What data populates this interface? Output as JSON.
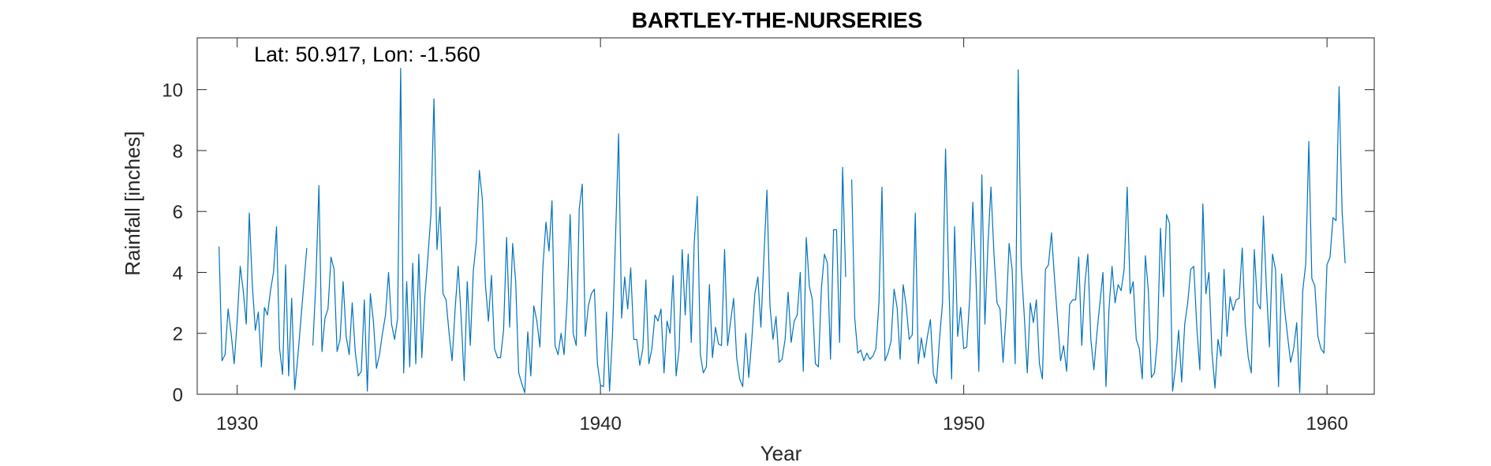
{
  "chart_data": {
    "type": "line",
    "title": "BARTLEY-THE-NURSERIES",
    "annotation": "Lat: 50.917, Lon: -1.560",
    "xlabel": "Year",
    "ylabel": "Rainfall [inches]",
    "xlim": [
      1928.9,
      1961.3
    ],
    "ylim": [
      0,
      11.7
    ],
    "xticks": [
      1930,
      1940,
      1950,
      1960
    ],
    "yticks": [
      0,
      2,
      4,
      6,
      8,
      10
    ],
    "grid": false,
    "line_color": "#0072BD",
    "series": [
      {
        "x_start": 1929.5,
        "x_step": 0.08333,
        "values": [
          4.85,
          1.1,
          1.3,
          2.8,
          2.0,
          1.0,
          2.4,
          4.2,
          3.4,
          2.3,
          5.95,
          3.6,
          2.1,
          2.7,
          0.9,
          2.85,
          2.6,
          3.4,
          4.0,
          5.5,
          1.5,
          0.65,
          4.25,
          0.6,
          3.15,
          0.15,
          1.2,
          2.4,
          3.6,
          4.8,
          null,
          1.6,
          3.7,
          6.85,
          1.4,
          2.5,
          2.8,
          4.5,
          4.1,
          1.4,
          1.8,
          3.7,
          1.9,
          1.3,
          3.0,
          1.4,
          0.6,
          0.75,
          3.1,
          0.1,
          3.3,
          2.4,
          0.85,
          1.3,
          2.0,
          2.6,
          4.0,
          2.3,
          1.8,
          2.5,
          10.7,
          0.7,
          3.7,
          0.9,
          4.3,
          1.0,
          4.6,
          1.2,
          3.2,
          4.5,
          5.9,
          9.7,
          4.75,
          6.15,
          3.3,
          3.1,
          2.0,
          1.1,
          2.8,
          4.2,
          2.5,
          0.45,
          3.7,
          1.6,
          4.05,
          5.0,
          7.35,
          6.4,
          3.6,
          2.4,
          3.9,
          1.5,
          1.2,
          1.2,
          2.1,
          5.15,
          2.2,
          4.95,
          3.7,
          0.7,
          0.35,
          0.05,
          2.05,
          0.6,
          2.9,
          2.4,
          1.55,
          4.2,
          5.65,
          4.7,
          6.35,
          1.6,
          1.3,
          2.0,
          1.3,
          3.1,
          5.9,
          2.0,
          1.6,
          6.1,
          6.9,
          1.9,
          2.9,
          3.3,
          3.45,
          1.0,
          0.3,
          0.25,
          2.7,
          0.1,
          2.0,
          5.2,
          8.55,
          2.5,
          3.85,
          2.8,
          4.15,
          1.8,
          1.8,
          0.95,
          1.5,
          3.75,
          1.0,
          1.5,
          2.6,
          2.4,
          2.8,
          0.7,
          2.4,
          2.0,
          3.9,
          0.6,
          1.5,
          4.75,
          2.6,
          4.6,
          1.7,
          5.0,
          6.5,
          1.3,
          0.7,
          0.9,
          3.6,
          1.2,
          2.2,
          1.65,
          1.6,
          4.75,
          1.6,
          2.4,
          3.15,
          1.2,
          0.5,
          0.25,
          2.0,
          0.55,
          1.8,
          3.3,
          3.85,
          2.2,
          4.5,
          6.7,
          2.9,
          1.8,
          2.55,
          1.05,
          1.15,
          1.8,
          3.35,
          1.7,
          2.4,
          2.6,
          4.0,
          0.75,
          5.15,
          3.55,
          3.1,
          1.0,
          0.9,
          3.5,
          4.6,
          4.3,
          1.15,
          5.4,
          5.4,
          1.7,
          7.45,
          3.85,
          null,
          7.05,
          2.5,
          1.35,
          1.45,
          1.1,
          1.35,
          1.15,
          1.25,
          1.5,
          3.0,
          6.8,
          1.1,
          1.35,
          1.75,
          3.45,
          2.85,
          1.15,
          3.6,
          2.9,
          1.8,
          1.95,
          5.95,
          1.0,
          1.85,
          1.2,
          1.9,
          2.45,
          0.65,
          0.35,
          1.8,
          3.0,
          8.05,
          4.0,
          0.5,
          5.5,
          1.9,
          2.85,
          1.5,
          1.55,
          3.2,
          6.3,
          4.0,
          0.75,
          7.2,
          2.3,
          4.9,
          6.8,
          4.6,
          3.0,
          2.8,
          1.05,
          2.6,
          4.95,
          4.1,
          1.0,
          10.65,
          4.2,
          2.6,
          0.7,
          3.0,
          2.35,
          3.1,
          1.0,
          0.5,
          4.1,
          4.25,
          5.3,
          3.8,
          2.45,
          1.1,
          1.6,
          0.75,
          2.95,
          3.1,
          3.1,
          4.5,
          1.6,
          3.6,
          4.6,
          1.8,
          0.8,
          2.0,
          3.0,
          4.0,
          0.25,
          2.8,
          4.2,
          3.0,
          3.6,
          3.4,
          4.1,
          6.8,
          3.3,
          3.7,
          1.8,
          1.5,
          0.5,
          4.55,
          3.4,
          0.55,
          0.7,
          1.8,
          5.45,
          3.2,
          5.9,
          5.6,
          0.1,
          0.9,
          2.1,
          0.4,
          2.3,
          3.0,
          4.1,
          4.2,
          2.2,
          0.8,
          6.25,
          3.3,
          4.0,
          1.4,
          0.2,
          1.8,
          1.25,
          4.1,
          1.9,
          3.2,
          2.75,
          3.1,
          3.15,
          4.8,
          2.3,
          1.2,
          0.7,
          4.75,
          3.0,
          2.8,
          5.85,
          3.5,
          1.55,
          4.6,
          4.1,
          0.25,
          3.95,
          2.8,
          1.9,
          1.05,
          1.5,
          2.35,
          0.05,
          3.4,
          4.3,
          8.3,
          3.8,
          3.55,
          1.9,
          1.5,
          1.35,
          4.25,
          4.5,
          5.8,
          5.7,
          10.1,
          6.0,
          4.3
        ]
      }
    ]
  }
}
